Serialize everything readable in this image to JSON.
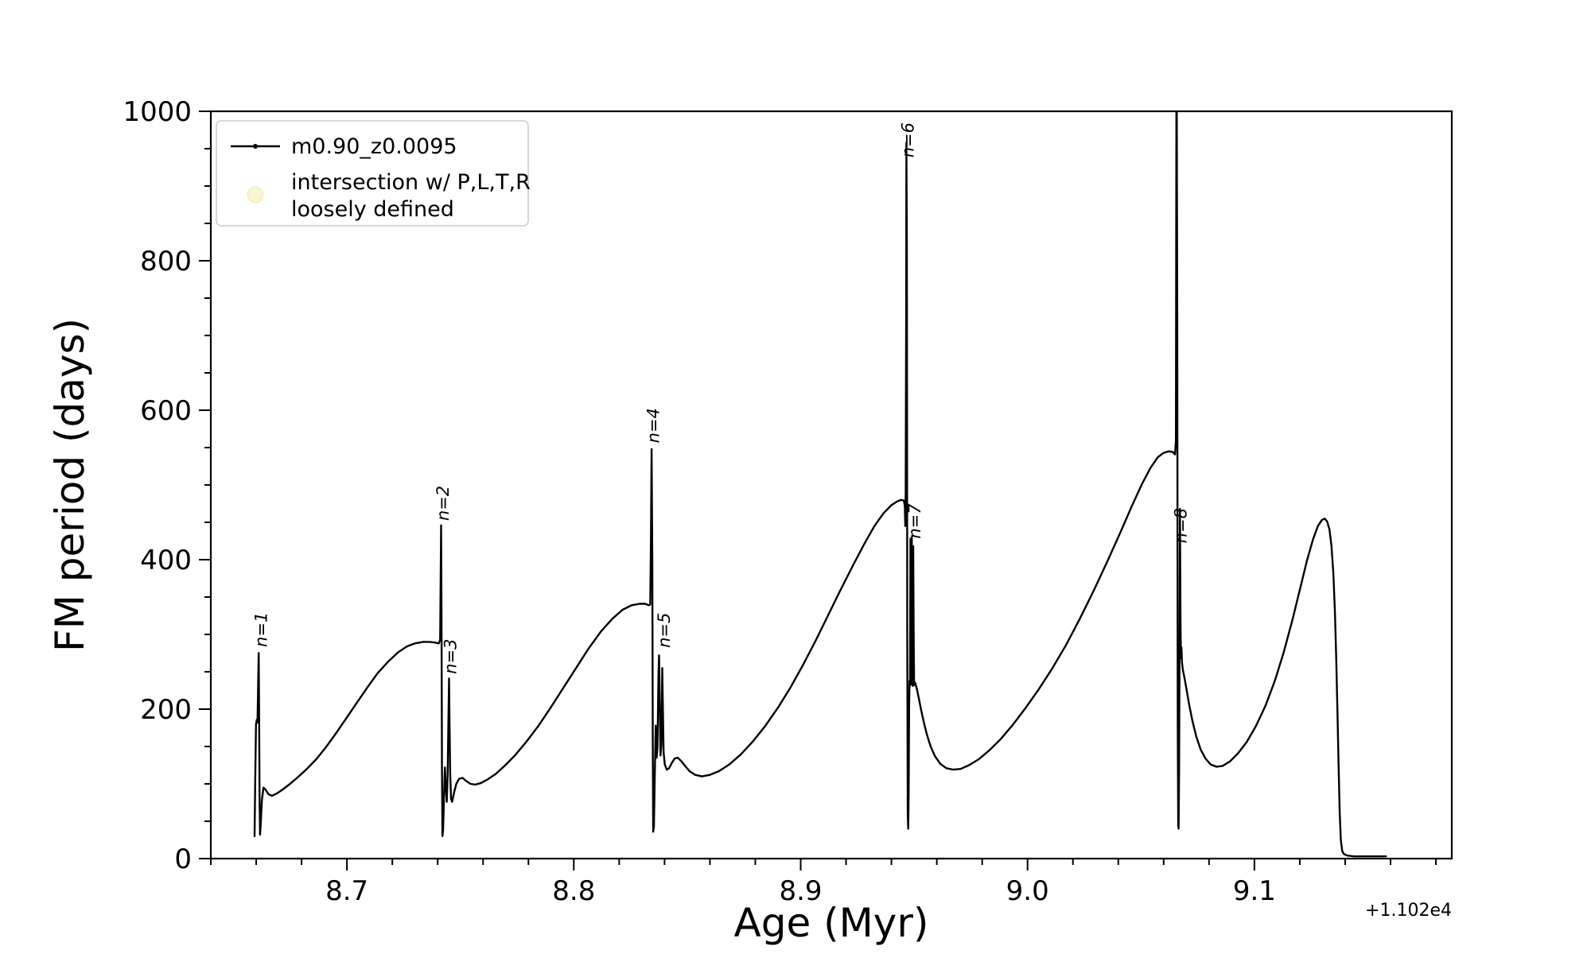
{
  "figure": {
    "background": "#ffffff",
    "xlabel": "Age (Myr)",
    "ylabel": "FM period (days)",
    "offset_text": "+1.102e4",
    "axis_color": "#000000"
  },
  "legend": {
    "frame_color": "#cccccc",
    "entries": [
      {
        "label": "m0.90_z0.0095",
        "type": "line",
        "color": "#000000"
      },
      {
        "label_line1": "intersection w/ P,L,T,R",
        "label_line2": "loosely defined",
        "type": "marker",
        "color": "#f0e68c",
        "alpha": 0.4
      }
    ]
  },
  "chart_data": {
    "type": "line",
    "title": "",
    "xlabel": "Age (Myr)",
    "ylabel": "FM period (days)",
    "x_offset_label": "+1.102e4",
    "xlim": [
      8.64,
      9.187
    ],
    "ylim": [
      0,
      1000
    ],
    "x_ticks": [
      8.7,
      8.8,
      8.9,
      9.0,
      9.1
    ],
    "x_minor_step": 0.02,
    "y_ticks": [
      0,
      200,
      400,
      600,
      800,
      1000
    ],
    "y_minor_step": 50,
    "grid": false,
    "legend_position": "upper left",
    "annotations": [
      {
        "text": "n=1",
        "x": 8.6622,
        "y": 283
      },
      {
        "text": "n=2",
        "x": 8.7423,
        "y": 452
      },
      {
        "text": "n=3",
        "x": 8.7458,
        "y": 247
      },
      {
        "text": "n=4",
        "x": 8.8351,
        "y": 556
      },
      {
        "text": "n=5",
        "x": 8.8399,
        "y": 282
      },
      {
        "text": "n=6",
        "x": 8.9473,
        "y": 938
      },
      {
        "text": "n=7",
        "x": 8.9503,
        "y": 428
      },
      {
        "text": "n=8",
        "x": 9.0676,
        "y": 422
      }
    ],
    "series": [
      {
        "name": "m0.90_z0.0095",
        "color": "#000000",
        "points": [
          [
            8.6593,
            30
          ],
          [
            8.6596,
            110
          ],
          [
            8.6599,
            180
          ],
          [
            8.6603,
            186
          ],
          [
            8.6606,
            182
          ],
          [
            8.6609,
            240
          ],
          [
            8.6611,
            275
          ],
          [
            8.6613,
            200
          ],
          [
            8.6615,
            80
          ],
          [
            8.6617,
            32
          ],
          [
            8.662,
            45
          ],
          [
            8.6625,
            78
          ],
          [
            8.6632,
            95
          ],
          [
            8.6642,
            92
          ],
          [
            8.6655,
            86
          ],
          [
            8.667,
            84
          ],
          [
            8.669,
            87
          ],
          [
            8.6715,
            92
          ],
          [
            8.6745,
            99
          ],
          [
            8.678,
            108
          ],
          [
            8.682,
            119
          ],
          [
            8.6865,
            133
          ],
          [
            8.691,
            150
          ],
          [
            8.6955,
            169
          ],
          [
            8.7,
            189
          ],
          [
            8.7045,
            209
          ],
          [
            8.709,
            229
          ],
          [
            8.7135,
            248
          ],
          [
            8.718,
            263
          ],
          [
            8.7225,
            276
          ],
          [
            8.7265,
            284
          ],
          [
            8.73,
            288
          ],
          [
            8.7335,
            290
          ],
          [
            8.7365,
            290
          ],
          [
            8.739,
            289
          ],
          [
            8.7405,
            288
          ],
          [
            8.7411,
            293
          ],
          [
            8.7413,
            370
          ],
          [
            8.7415,
            446
          ],
          [
            8.7417,
            330
          ],
          [
            8.7419,
            120
          ],
          [
            8.7421,
            30
          ],
          [
            8.7424,
            38
          ],
          [
            8.7428,
            85
          ],
          [
            8.7432,
            122
          ],
          [
            8.7436,
            95
          ],
          [
            8.744,
            76
          ],
          [
            8.7444,
            110
          ],
          [
            8.7448,
            200
          ],
          [
            8.745,
            241
          ],
          [
            8.7452,
            190
          ],
          [
            8.7455,
            115
          ],
          [
            8.7459,
            80
          ],
          [
            8.7464,
            76
          ],
          [
            8.7472,
            88
          ],
          [
            8.7482,
            100
          ],
          [
            8.7495,
            107
          ],
          [
            8.751,
            108
          ],
          [
            8.7525,
            104
          ],
          [
            8.7545,
            100
          ],
          [
            8.7565,
            99
          ],
          [
            8.759,
            101
          ],
          [
            8.762,
            106
          ],
          [
            8.7655,
            113
          ],
          [
            8.7695,
            124
          ],
          [
            8.774,
            138
          ],
          [
            8.779,
            156
          ],
          [
            8.7845,
            178
          ],
          [
            8.79,
            203
          ],
          [
            8.7955,
            229
          ],
          [
            8.801,
            255
          ],
          [
            8.8065,
            281
          ],
          [
            8.812,
            304
          ],
          [
            8.817,
            321
          ],
          [
            8.8215,
            333
          ],
          [
            8.8255,
            339
          ],
          [
            8.829,
            341
          ],
          [
            8.8315,
            341
          ],
          [
            8.833,
            339
          ],
          [
            8.8337,
            340
          ],
          [
            8.834,
            430
          ],
          [
            8.8343,
            548
          ],
          [
            8.8346,
            400
          ],
          [
            8.8348,
            150
          ],
          [
            8.835,
            36
          ],
          [
            8.8353,
            42
          ],
          [
            8.8357,
            110
          ],
          [
            8.8361,
            178
          ],
          [
            8.8365,
            135
          ],
          [
            8.8369,
            148
          ],
          [
            8.8373,
            245
          ],
          [
            8.8376,
            272
          ],
          [
            8.8379,
            205
          ],
          [
            8.8382,
            138
          ],
          [
            8.8386,
            152
          ],
          [
            8.839,
            255
          ],
          [
            8.8393,
            195
          ],
          [
            8.8396,
            142
          ],
          [
            8.8401,
            126
          ],
          [
            8.841,
            119
          ],
          [
            8.842,
            121
          ],
          [
            8.8432,
            128
          ],
          [
            8.8445,
            134
          ],
          [
            8.8458,
            135
          ],
          [
            8.8472,
            131
          ],
          [
            8.849,
            124
          ],
          [
            8.851,
            117
          ],
          [
            8.8535,
            112
          ],
          [
            8.8565,
            110
          ],
          [
            8.86,
            112
          ],
          [
            8.864,
            117
          ],
          [
            8.8685,
            126
          ],
          [
            8.8735,
            139
          ],
          [
            8.879,
            157
          ],
          [
            8.8845,
            178
          ],
          [
            8.89,
            202
          ],
          [
            8.8955,
            229
          ],
          [
            8.901,
            259
          ],
          [
            8.9065,
            291
          ],
          [
            8.912,
            325
          ],
          [
            8.9175,
            359
          ],
          [
            8.923,
            392
          ],
          [
            8.928,
            421
          ],
          [
            8.9325,
            445
          ],
          [
            8.9365,
            462
          ],
          [
            8.94,
            473
          ],
          [
            8.9425,
            478
          ],
          [
            8.9443,
            480
          ],
          [
            8.9455,
            479
          ],
          [
            8.9459,
            472
          ],
          [
            8.9461,
            445
          ],
          [
            8.9463,
            490
          ],
          [
            8.9465,
            720
          ],
          [
            8.9466,
            958
          ],
          [
            8.9468,
            820
          ],
          [
            8.947,
            300
          ],
          [
            8.9472,
            60
          ],
          [
            8.9474,
            40
          ],
          [
            8.9476,
            90
          ],
          [
            8.9478,
            205
          ],
          [
            8.948,
            238
          ],
          [
            8.9482,
            232
          ],
          [
            8.9484,
            428
          ],
          [
            8.9486,
            320
          ],
          [
            8.9488,
            233
          ],
          [
            8.949,
            430
          ],
          [
            8.9492,
            300
          ],
          [
            8.9494,
            231
          ],
          [
            8.9496,
            418
          ],
          [
            8.9498,
            310
          ],
          [
            8.95,
            232
          ],
          [
            8.9503,
            236
          ],
          [
            8.9507,
            233
          ],
          [
            8.9513,
            226
          ],
          [
            8.9521,
            214
          ],
          [
            8.9531,
            199
          ],
          [
            8.9543,
            182
          ],
          [
            8.9557,
            165
          ],
          [
            8.9573,
            150
          ],
          [
            8.9592,
            137
          ],
          [
            8.9615,
            127
          ],
          [
            8.9642,
            121
          ],
          [
            8.9672,
            119
          ],
          [
            8.9705,
            120
          ],
          [
            8.9742,
            125
          ],
          [
            8.9785,
            133
          ],
          [
            8.9832,
            145
          ],
          [
            8.9882,
            160
          ],
          [
            8.9935,
            179
          ],
          [
            8.999,
            201
          ],
          [
            9.0048,
            226
          ],
          [
            9.0108,
            254
          ],
          [
            9.017,
            286
          ],
          [
            9.0232,
            322
          ],
          [
            9.0294,
            360
          ],
          [
            9.0354,
            399
          ],
          [
            9.041,
            437
          ],
          [
            9.046,
            472
          ],
          [
            9.0504,
            501
          ],
          [
            9.0542,
            523
          ],
          [
            9.0574,
            537
          ],
          [
            9.06,
            543
          ],
          [
            9.0622,
            545
          ],
          [
            9.064,
            544
          ],
          [
            9.065,
            541
          ],
          [
            9.0654,
            560
          ],
          [
            9.0656,
            1000
          ],
          [
            9.0658,
            1000
          ],
          [
            9.066,
            720
          ],
          [
            9.0662,
            180
          ],
          [
            9.0664,
            44
          ],
          [
            9.0666,
            40
          ],
          [
            9.0668,
            115
          ],
          [
            9.067,
            282
          ],
          [
            9.0672,
            468
          ],
          [
            9.0674,
            330
          ],
          [
            9.0676,
            268
          ],
          [
            9.0678,
            283
          ],
          [
            9.0681,
            262
          ],
          [
            9.0685,
            252
          ],
          [
            9.0691,
            243
          ],
          [
            9.07,
            228
          ],
          [
            9.0712,
            207
          ],
          [
            9.0727,
            184
          ],
          [
            9.0744,
            163
          ],
          [
            9.0763,
            146
          ],
          [
            9.0784,
            134
          ],
          [
            9.0807,
            126
          ],
          [
            9.0832,
            123
          ],
          [
            9.086,
            124
          ],
          [
            9.0892,
            130
          ],
          [
            9.0928,
            141
          ],
          [
            9.0966,
            156
          ],
          [
            9.1006,
            177
          ],
          [
            9.1048,
            204
          ],
          [
            9.109,
            238
          ],
          [
            9.113,
            277
          ],
          [
            9.1168,
            320
          ],
          [
            9.1202,
            362
          ],
          [
            9.1232,
            399
          ],
          [
            9.1258,
            427
          ],
          [
            9.128,
            445
          ],
          [
            9.1297,
            453
          ],
          [
            9.131,
            455
          ],
          [
            9.1321,
            451
          ],
          [
            9.1331,
            440
          ],
          [
            9.134,
            418
          ],
          [
            9.1348,
            382
          ],
          [
            9.1355,
            330
          ],
          [
            9.1361,
            265
          ],
          [
            9.1366,
            195
          ],
          [
            9.1371,
            125
          ],
          [
            9.1376,
            62
          ],
          [
            9.1381,
            25
          ],
          [
            9.1387,
            10
          ],
          [
            9.1395,
            6
          ],
          [
            9.141,
            4
          ],
          [
            9.144,
            3
          ],
          [
            9.148,
            3
          ],
          [
            9.153,
            3
          ],
          [
            9.158,
            3
          ]
        ]
      }
    ]
  }
}
